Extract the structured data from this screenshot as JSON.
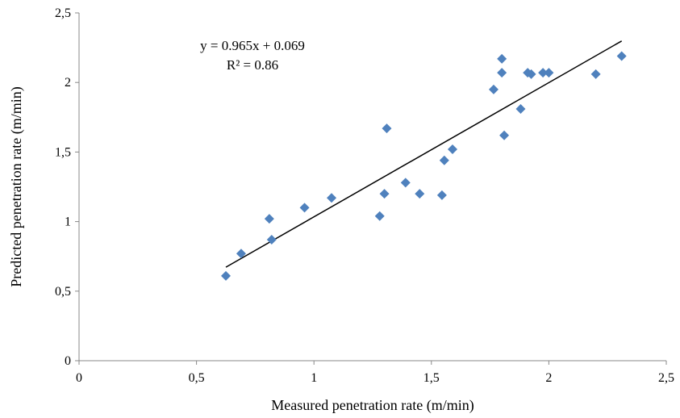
{
  "chart_data": {
    "type": "scatter",
    "title": "",
    "xlabel": "Measured penetration rate (m/min)",
    "ylabel": "Predicted penetration rate (m/min)",
    "xlim": [
      0,
      2.5
    ],
    "ylim": [
      0,
      2.5
    ],
    "x_ticks": [
      "0",
      "0,5",
      "1",
      "1,5",
      "2",
      "2,5"
    ],
    "y_ticks": [
      "0",
      "0,5",
      "1",
      "1,5",
      "2",
      "2,5"
    ],
    "grid": false,
    "legend": "none",
    "marker": "diamond",
    "marker_color": "#4f81bd",
    "series": [
      {
        "points": [
          [
            0.625,
            0.61
          ],
          [
            0.69,
            0.77
          ],
          [
            0.81,
            1.02
          ],
          [
            0.82,
            0.87
          ],
          [
            0.96,
            1.1
          ],
          [
            1.075,
            1.17
          ],
          [
            1.28,
            1.04
          ],
          [
            1.3,
            1.2
          ],
          [
            1.31,
            1.67
          ],
          [
            1.39,
            1.28
          ],
          [
            1.45,
            1.2
          ],
          [
            1.545,
            1.19
          ],
          [
            1.555,
            1.44
          ],
          [
            1.59,
            1.52
          ],
          [
            1.765,
            1.95
          ],
          [
            1.8,
            2.17
          ],
          [
            1.8,
            2.07
          ],
          [
            1.81,
            1.62
          ],
          [
            1.88,
            1.81
          ],
          [
            1.91,
            2.07
          ],
          [
            1.925,
            2.06
          ],
          [
            1.975,
            2.07
          ],
          [
            2.0,
            2.07
          ],
          [
            2.2,
            2.06
          ],
          [
            2.31,
            2.19
          ]
        ]
      }
    ],
    "trendline": {
      "type": "linear",
      "slope": 0.965,
      "intercept": 0.069,
      "x_range": [
        0.625,
        2.31
      ],
      "color": "#000000",
      "equation_label": "y = 0.965x + 0.069",
      "r2_label": "R² = 0.86"
    }
  }
}
